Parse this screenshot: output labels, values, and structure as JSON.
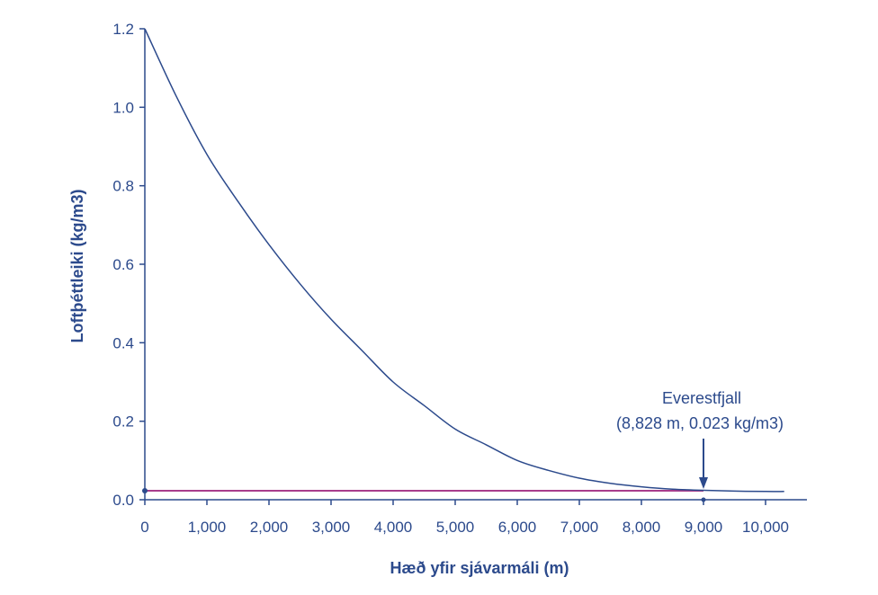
{
  "colors": {
    "axis": "#2c4a8c",
    "curve": "#2c4a8c",
    "reference_line": "#a83c8c"
  },
  "chart_data": {
    "type": "line",
    "xlabel": "Hæð yfir sjávarmáli (m)",
    "ylabel": "Loftþéttleiki (kg/m3)",
    "xlim": [
      0,
      10600
    ],
    "ylim": [
      0,
      1.2
    ],
    "x_ticks": [
      0,
      1000,
      2000,
      3000,
      4000,
      5000,
      6000,
      7000,
      8000,
      9000,
      10000
    ],
    "x_tick_labels": [
      "0",
      "1,000",
      "2,000",
      "3,000",
      "4,000",
      "5,000",
      "6,000",
      "7,000",
      "8,000",
      "9,000",
      "10,000"
    ],
    "y_ticks": [
      0,
      0.2,
      0.4,
      0.6,
      0.8,
      1.0,
      1.2
    ],
    "y_tick_labels": [
      "0.0",
      "0.2",
      "0.4",
      "0.6",
      "0.8",
      "1.0",
      "1.2"
    ],
    "grid": false,
    "series": [
      {
        "x": [
          0,
          500,
          1000,
          1500,
          2000,
          2500,
          3000,
          3500,
          4000,
          4500,
          5000,
          5500,
          6000,
          6500,
          7000,
          7500,
          8000,
          8500,
          9000,
          9500,
          10000,
          10300
        ],
        "y": [
          1.2,
          1.03,
          0.88,
          0.76,
          0.65,
          0.55,
          0.46,
          0.38,
          0.3,
          0.24,
          0.18,
          0.14,
          0.1,
          0.075,
          0.055,
          0.042,
          0.033,
          0.027,
          0.024,
          0.022,
          0.021,
          0.021
        ]
      }
    ],
    "reference_line": {
      "y": 0.023,
      "x_start": 0,
      "x_end": 9000
    },
    "annotation": {
      "line1": "Everestfjall",
      "line2": "(8,828 m, 0.023 kg/m3)",
      "point": {
        "x": 9000,
        "y": 0
      }
    }
  }
}
